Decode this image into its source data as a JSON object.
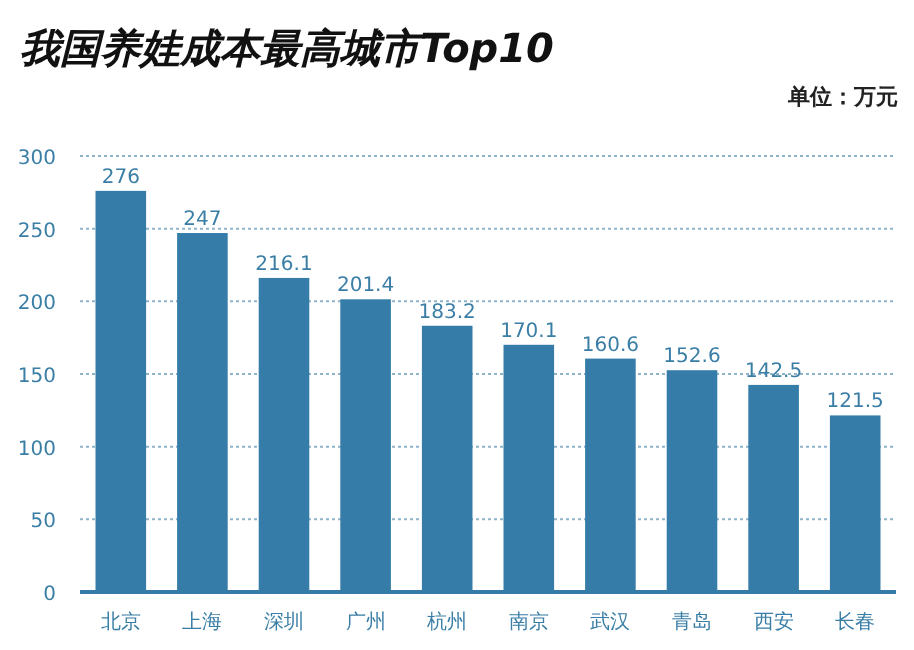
{
  "chart_data": {
    "type": "bar",
    "title": "我国养娃成本最高城市Top10",
    "annotations": [
      "单位：万元"
    ],
    "categories": [
      "北京",
      "上海",
      "深圳",
      "广州",
      "杭州",
      "南京",
      "武汉",
      "青岛",
      "西安",
      "长春"
    ],
    "values": [
      276,
      247,
      216.1,
      201.4,
      183.2,
      170.1,
      160.6,
      152.6,
      142.5,
      121.5
    ],
    "color": "#357da8",
    "ylim": [
      0,
      300
    ],
    "yticks": [
      0,
      50,
      100,
      150,
      200,
      250,
      300
    ],
    "grid": "y",
    "data_labels": true
  }
}
